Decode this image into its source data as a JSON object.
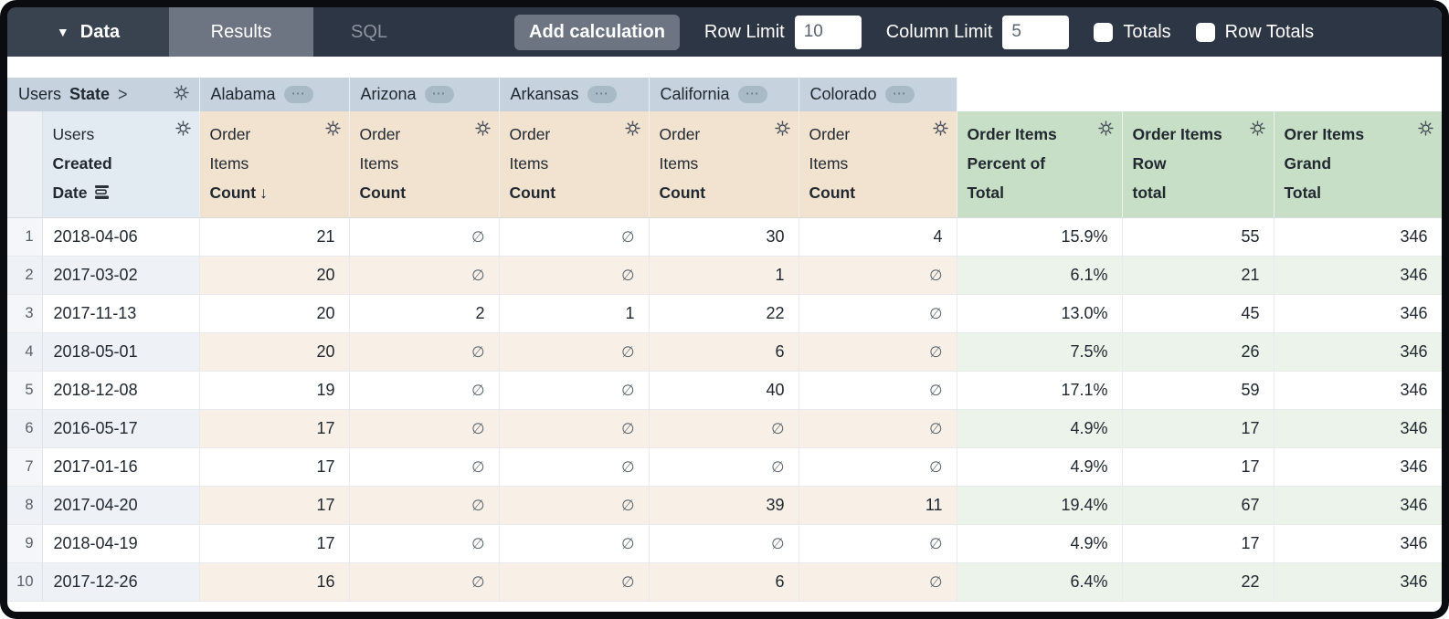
{
  "toolbar": {
    "data_tab": "Data",
    "results_tab": "Results",
    "sql_tab": "SQL",
    "add_calculation": "Add calculation",
    "row_limit_label": "Row Limit",
    "row_limit_value": "10",
    "column_limit_label": "Column Limit",
    "column_limit_value": "5",
    "totals_label": "Totals",
    "totals_checked": false,
    "row_totals_label": "Row Totals",
    "row_totals_checked": false
  },
  "colors": {
    "topbar_bg": "#2d3644",
    "active_tab_bg": "#6e7582",
    "pivot_header_bg": "#c6d3de",
    "date_header_bg": "#e3ebf2",
    "measure_header_bg": "#f2e3d1",
    "calc_header_bg": "#c8dfc7",
    "row_tint_date": "#eef2f7",
    "row_tint_measure": "#f8f0e7",
    "row_tint_calc": "#ebf3ea"
  },
  "table": {
    "pivot": {
      "field_normal": "Users",
      "field_bold": "State",
      "chevron": ">",
      "menu_glyph": "⋯",
      "values": [
        "Alabama",
        "Arizona",
        "Arkansas",
        "California",
        "Colorado"
      ]
    },
    "date_field": {
      "lines": [
        "Users",
        "Created",
        "Date"
      ],
      "bold_from": 1
    },
    "measure_fields": [
      {
        "lines": [
          "Order",
          "Items",
          "Count"
        ],
        "bold_from": 2,
        "sorted": true
      },
      {
        "lines": [
          "Order",
          "Items",
          "Count"
        ],
        "bold_from": 2,
        "sorted": false
      },
      {
        "lines": [
          "Order",
          "Items",
          "Count"
        ],
        "bold_from": 2,
        "sorted": false
      },
      {
        "lines": [
          "Order",
          "Items",
          "Count"
        ],
        "bold_from": 2,
        "sorted": false
      },
      {
        "lines": [
          "Order",
          "Items",
          "Count"
        ],
        "bold_from": 2,
        "sorted": false
      }
    ],
    "calc_fields": [
      {
        "lines": [
          "Order Items",
          "Percent of",
          "Total"
        ],
        "bold_from": 0
      },
      {
        "lines": [
          "Order Items",
          "Row",
          "total"
        ],
        "bold_from": 0
      },
      {
        "lines": [
          "Orer Items",
          "Grand",
          "Total"
        ],
        "bold_from": 0
      }
    ],
    "sort_arrow": "↓",
    "null_symbol": "∅",
    "rows": [
      {
        "num": "1",
        "date": "2018-04-06",
        "values": [
          "21",
          null,
          null,
          "30",
          "4"
        ],
        "calcs": [
          "15.9%",
          "55",
          "346"
        ]
      },
      {
        "num": "2",
        "date": "2017-03-02",
        "values": [
          "20",
          null,
          null,
          "1",
          null
        ],
        "calcs": [
          "6.1%",
          "21",
          "346"
        ]
      },
      {
        "num": "3",
        "date": "2017-11-13",
        "values": [
          "20",
          "2",
          "1",
          "22",
          null
        ],
        "calcs": [
          "13.0%",
          "45",
          "346"
        ]
      },
      {
        "num": "4",
        "date": "2018-05-01",
        "values": [
          "20",
          null,
          null,
          "6",
          null
        ],
        "calcs": [
          "7.5%",
          "26",
          "346"
        ]
      },
      {
        "num": "5",
        "date": "2018-12-08",
        "values": [
          "19",
          null,
          null,
          "40",
          null
        ],
        "calcs": [
          "17.1%",
          "59",
          "346"
        ]
      },
      {
        "num": "6",
        "date": "2016-05-17",
        "values": [
          "17",
          null,
          null,
          null,
          null
        ],
        "calcs": [
          "4.9%",
          "17",
          "346"
        ]
      },
      {
        "num": "7",
        "date": "2017-01-16",
        "values": [
          "17",
          null,
          null,
          null,
          null
        ],
        "calcs": [
          "4.9%",
          "17",
          "346"
        ]
      },
      {
        "num": "8",
        "date": "2017-04-20",
        "values": [
          "17",
          null,
          null,
          "39",
          "11"
        ],
        "calcs": [
          "19.4%",
          "67",
          "346"
        ]
      },
      {
        "num": "9",
        "date": "2018-04-19",
        "values": [
          "17",
          null,
          null,
          null,
          null
        ],
        "calcs": [
          "4.9%",
          "17",
          "346"
        ]
      },
      {
        "num": "10",
        "date": "2017-12-26",
        "values": [
          "16",
          null,
          null,
          "6",
          null
        ],
        "calcs": [
          "6.4%",
          "22",
          "346"
        ]
      }
    ]
  }
}
